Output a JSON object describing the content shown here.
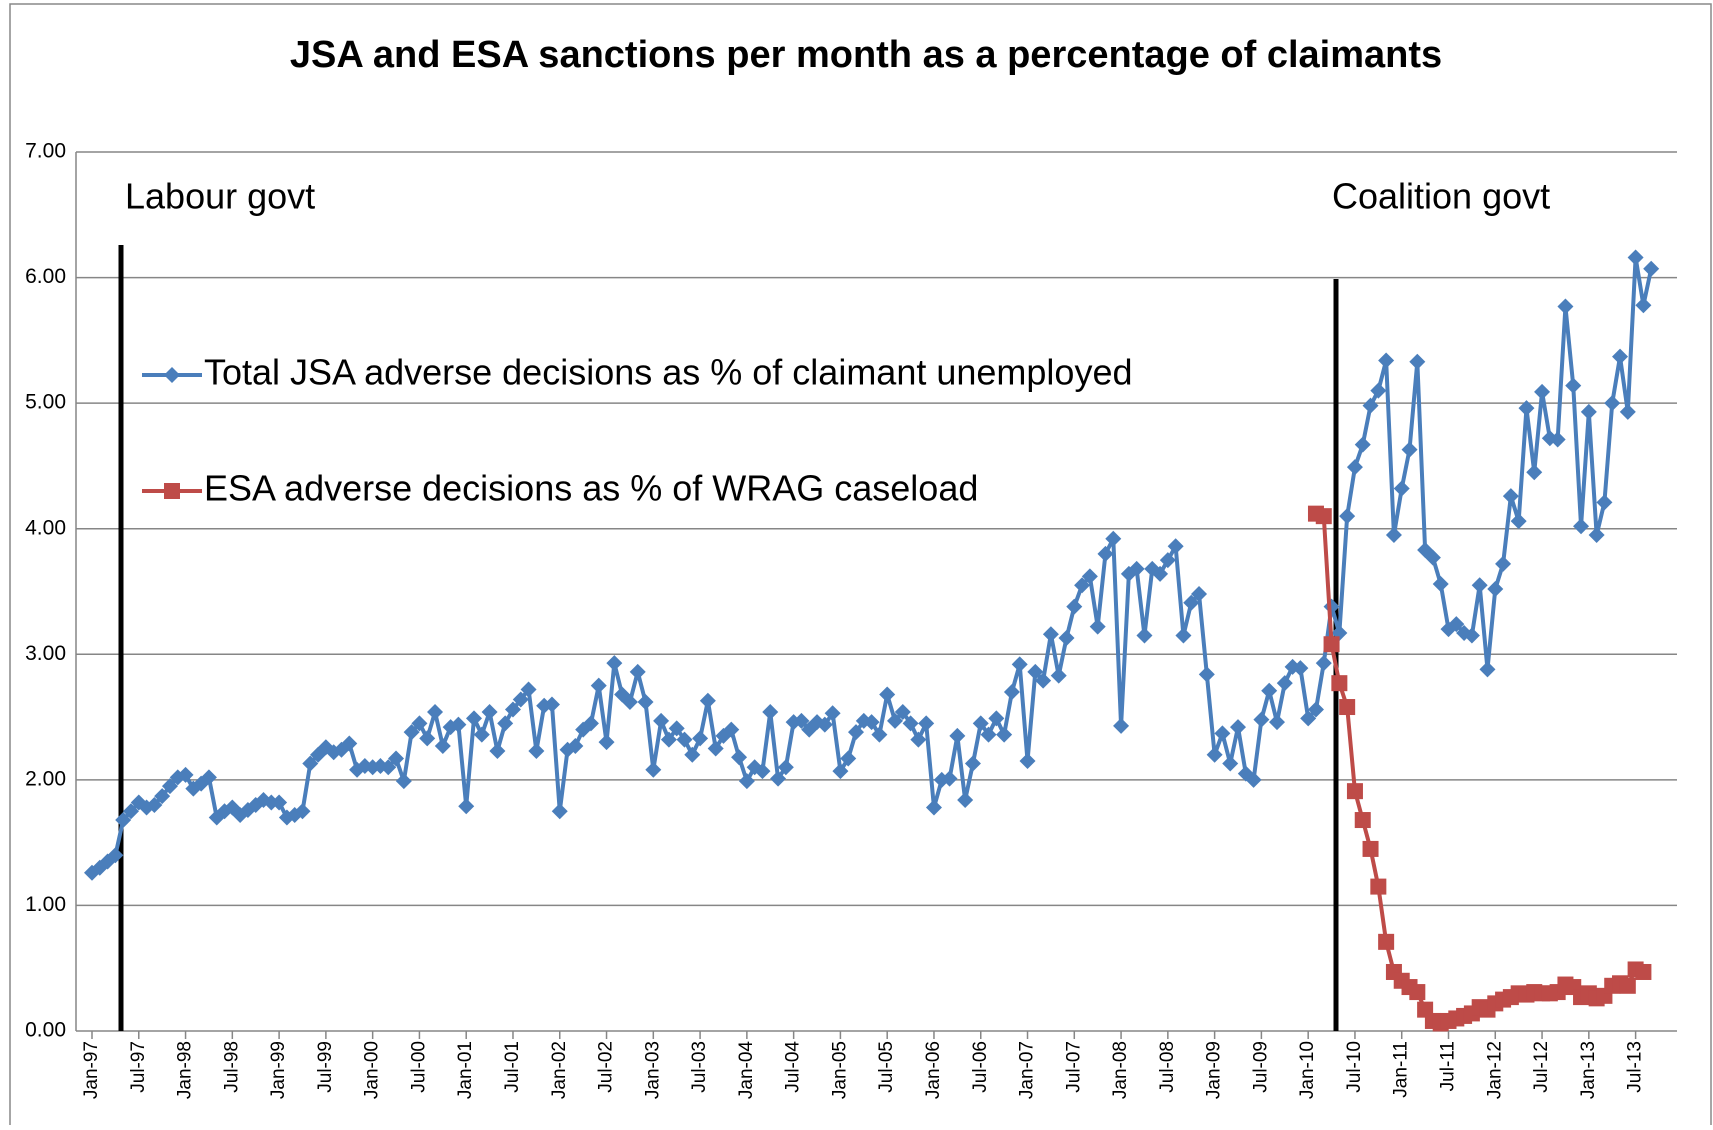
{
  "chart_data": {
    "type": "line",
    "title": "JSA and ESA sanctions per month as a percentage of claimants",
    "annotations": [
      "Labour govt",
      "Coalition govt"
    ],
    "legend": "upper left",
    "grid": true,
    "ylim": [
      0,
      7
    ],
    "yticks": [
      {
        "value": 0,
        "label": "0.00"
      },
      {
        "value": 1,
        "label": "1.00"
      },
      {
        "value": 2,
        "label": "2.00"
      },
      {
        "value": 3,
        "label": "3.00"
      },
      {
        "value": 4,
        "label": "4.00"
      },
      {
        "value": 5,
        "label": "5.00"
      },
      {
        "value": 6,
        "label": "6.00"
      },
      {
        "value": 7,
        "label": "7.00"
      }
    ],
    "categories": [
      "Jan-97",
      null,
      null,
      null,
      null,
      null,
      "Jul-97",
      null,
      null,
      null,
      null,
      null,
      "Jan-98",
      null,
      null,
      null,
      null,
      null,
      "Jul-98",
      null,
      null,
      null,
      null,
      null,
      "Jan-99",
      null,
      null,
      null,
      null,
      null,
      "Jul-99",
      null,
      null,
      null,
      null,
      null,
      "Jan-00",
      null,
      null,
      null,
      null,
      null,
      "Jul-00",
      null,
      null,
      null,
      null,
      null,
      "Jan-01",
      null,
      null,
      null,
      null,
      null,
      "Jul-01",
      null,
      null,
      null,
      null,
      null,
      "Jan-02",
      null,
      null,
      null,
      null,
      null,
      "Jul-02",
      null,
      null,
      null,
      null,
      null,
      "Jan-03",
      null,
      null,
      null,
      null,
      null,
      "Jul-03",
      null,
      null,
      null,
      null,
      null,
      "Jan-04",
      null,
      null,
      null,
      null,
      null,
      "Jul-04",
      null,
      null,
      null,
      null,
      null,
      "Jan-05",
      null,
      null,
      null,
      null,
      null,
      "Jul-05",
      null,
      null,
      null,
      null,
      null,
      "Jan-06",
      null,
      null,
      null,
      null,
      null,
      "Jul-06",
      null,
      null,
      null,
      null,
      null,
      "Jan-07",
      null,
      null,
      null,
      null,
      null,
      "Jul-07",
      null,
      null,
      null,
      null,
      null,
      "Jan-08",
      null,
      null,
      null,
      null,
      null,
      "Jul-08",
      null,
      null,
      null,
      null,
      null,
      "Jan-09",
      null,
      null,
      null,
      null,
      null,
      "Jul-09",
      null,
      null,
      null,
      null,
      null,
      "Jan-10",
      null,
      null,
      null,
      null,
      null,
      "Jul-10",
      null,
      null,
      null,
      null,
      null,
      "Jan-11",
      null,
      null,
      null,
      null,
      null,
      "Jul-11",
      null,
      null,
      null,
      null,
      null,
      "Jan-12",
      null,
      null,
      null,
      null,
      null,
      "Jul-12",
      null,
      null,
      null,
      null,
      null,
      "Jan-13",
      null,
      null,
      null,
      null,
      null,
      "Jul-13",
      null,
      null
    ],
    "series": [
      {
        "name": "Total JSA adverse decisions as % of claimant unemployed",
        "color": "#4a7ebb",
        "marker": "diamond",
        "values": [
          1.26,
          1.3,
          1.35,
          1.4,
          1.68,
          1.75,
          1.82,
          1.78,
          1.8,
          1.87,
          1.95,
          2.02,
          2.04,
          1.93,
          1.97,
          2.02,
          1.7,
          1.75,
          1.78,
          1.72,
          1.76,
          1.8,
          1.84,
          1.82,
          1.82,
          1.7,
          1.72,
          1.75,
          2.13,
          2.2,
          2.26,
          2.22,
          2.24,
          2.29,
          2.08,
          2.11,
          2.1,
          2.11,
          2.1,
          2.17,
          1.99,
          2.38,
          2.45,
          2.33,
          2.54,
          2.27,
          2.42,
          2.44,
          1.79,
          2.49,
          2.36,
          2.54,
          2.23,
          2.45,
          2.56,
          2.64,
          2.72,
          2.23,
          2.59,
          2.6,
          1.75,
          2.24,
          2.27,
          2.4,
          2.45,
          2.75,
          2.3,
          2.93,
          2.68,
          2.62,
          2.86,
          2.62,
          2.08,
          2.47,
          2.32,
          2.41,
          2.32,
          2.2,
          2.33,
          2.63,
          2.25,
          2.35,
          2.4,
          2.18,
          1.99,
          2.1,
          2.07,
          2.54,
          2.01,
          2.1,
          2.46,
          2.47,
          2.4,
          2.46,
          2.44,
          2.53,
          2.07,
          2.17,
          2.38,
          2.47,
          2.46,
          2.36,
          2.68,
          2.47,
          2.54,
          2.45,
          2.32,
          2.45,
          1.78,
          2.0,
          2.01,
          2.35,
          1.84,
          2.13,
          2.45,
          2.36,
          2.49,
          2.36,
          2.7,
          2.92,
          2.15,
          2.86,
          2.79,
          3.16,
          2.83,
          3.13,
          3.38,
          3.55,
          3.62,
          3.22,
          3.8,
          3.92,
          2.43,
          3.64,
          3.68,
          3.15,
          3.68,
          3.64,
          3.75,
          3.86,
          3.15,
          3.41,
          3.48,
          2.84,
          2.2,
          2.37,
          2.13,
          2.42,
          2.05,
          2.0,
          2.48,
          2.71,
          2.46,
          2.77,
          2.9,
          2.89,
          2.49,
          2.56,
          2.93,
          3.38,
          3.17,
          4.1,
          4.49,
          4.67,
          4.98,
          5.1,
          5.34,
          3.95,
          4.32,
          4.63,
          5.33,
          3.83,
          3.77,
          3.56,
          3.2,
          3.24,
          3.17,
          3.15,
          3.55,
          2.88,
          3.52,
          3.72,
          4.26,
          4.06,
          4.96,
          4.45,
          5.09,
          4.72,
          4.71,
          5.77,
          5.14,
          4.02,
          4.93,
          3.95,
          4.21,
          5.0,
          5.37,
          4.93,
          6.16,
          5.78,
          6.07
        ]
      },
      {
        "name": "ESA adverse decisions as % of WRAG caseload",
        "color": "#be4b48",
        "marker": "square",
        "values": [
          null,
          null,
          null,
          null,
          null,
          null,
          null,
          null,
          null,
          null,
          null,
          null,
          null,
          null,
          null,
          null,
          null,
          null,
          null,
          null,
          null,
          null,
          null,
          null,
          null,
          null,
          null,
          null,
          null,
          null,
          null,
          null,
          null,
          null,
          null,
          null,
          null,
          null,
          null,
          null,
          null,
          null,
          null,
          null,
          null,
          null,
          null,
          null,
          null,
          null,
          null,
          null,
          null,
          null,
          null,
          null,
          null,
          null,
          null,
          null,
          null,
          null,
          null,
          null,
          null,
          null,
          null,
          null,
          null,
          null,
          null,
          null,
          null,
          null,
          null,
          null,
          null,
          null,
          null,
          null,
          null,
          null,
          null,
          null,
          null,
          null,
          null,
          null,
          null,
          null,
          null,
          null,
          null,
          null,
          null,
          null,
          null,
          null,
          null,
          null,
          null,
          null,
          null,
          null,
          null,
          null,
          null,
          null,
          null,
          null,
          null,
          null,
          null,
          null,
          null,
          null,
          null,
          null,
          null,
          null,
          null,
          null,
          null,
          null,
          null,
          null,
          null,
          null,
          null,
          null,
          null,
          null,
          null,
          null,
          null,
          null,
          null,
          null,
          null,
          null,
          null,
          null,
          null,
          null,
          null,
          null,
          null,
          null,
          null,
          null,
          null,
          null,
          null,
          null,
          null,
          null,
          null,
          4.12,
          4.1,
          3.08,
          2.77,
          2.58,
          1.91,
          1.68,
          1.45,
          1.15,
          0.71,
          0.47,
          0.4,
          0.35,
          0.31,
          0.17,
          0.08,
          0.06,
          0.08,
          0.1,
          0.12,
          0.14,
          0.19,
          0.17,
          0.22,
          0.25,
          0.27,
          0.3,
          0.29,
          0.31,
          0.3,
          0.3,
          0.31,
          0.37,
          0.35,
          0.27,
          0.3,
          0.26,
          0.28,
          0.36,
          0.38,
          0.36,
          0.49,
          0.47,
          null
        ]
      }
    ]
  }
}
